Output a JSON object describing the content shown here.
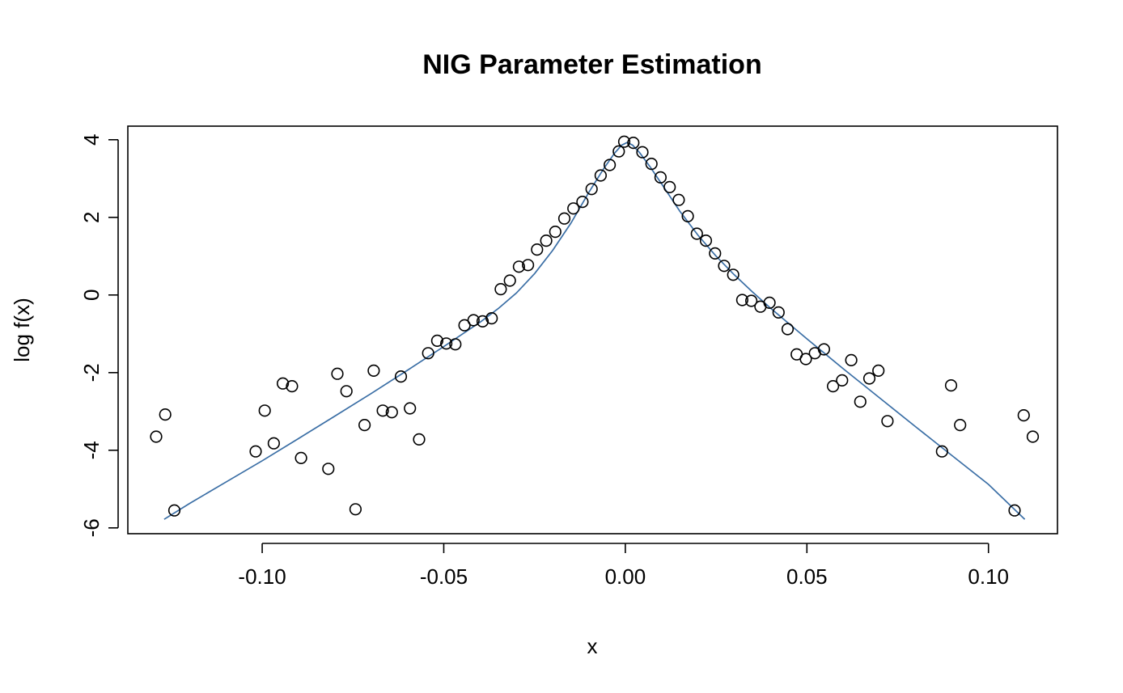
{
  "chart_data": {
    "type": "scatter",
    "title": "NIG Parameter Estimation",
    "xlabel": "x",
    "ylabel": "log f(x)",
    "xlim": [
      -0.137,
      0.119
    ],
    "ylim": [
      -6.15,
      4.35
    ],
    "x_ticks": [
      -0.1,
      -0.05,
      0.0,
      0.05,
      0.1
    ],
    "x_tick_labels": [
      "-0.10",
      "-0.05",
      "0.00",
      "0.05",
      "0.10"
    ],
    "y_ticks": [
      -6,
      -4,
      -2,
      0,
      2,
      4
    ],
    "y_tick_labels": [
      "-6",
      "-4",
      "-2",
      "0",
      "2",
      "4"
    ],
    "grid": false,
    "legend": "none",
    "series": [
      {
        "kind": "points",
        "color": "#000000",
        "points": [
          [
            -0.1292,
            -3.65
          ],
          [
            -0.1267,
            -3.08
          ],
          [
            -0.1242,
            -5.55
          ],
          [
            -0.1018,
            -4.03
          ],
          [
            -0.0993,
            -2.98
          ],
          [
            -0.0968,
            -3.82
          ],
          [
            -0.0943,
            -2.28
          ],
          [
            -0.0918,
            -2.35
          ],
          [
            -0.0893,
            -4.2
          ],
          [
            -0.0818,
            -4.48
          ],
          [
            -0.0793,
            -2.03
          ],
          [
            -0.0768,
            -2.48
          ],
          [
            -0.0743,
            -5.52
          ],
          [
            -0.0718,
            -3.35
          ],
          [
            -0.0693,
            -1.95
          ],
          [
            -0.0668,
            -2.98
          ],
          [
            -0.0643,
            -3.02
          ],
          [
            -0.0618,
            -2.1
          ],
          [
            -0.0593,
            -2.92
          ],
          [
            -0.0568,
            -3.72
          ],
          [
            -0.0543,
            -1.5
          ],
          [
            -0.0518,
            -1.18
          ],
          [
            -0.0493,
            -1.25
          ],
          [
            -0.0468,
            -1.27
          ],
          [
            -0.0443,
            -0.78
          ],
          [
            -0.0418,
            -0.65
          ],
          [
            -0.0393,
            -0.68
          ],
          [
            -0.0368,
            -0.6
          ],
          [
            -0.0343,
            0.15
          ],
          [
            -0.0318,
            0.37
          ],
          [
            -0.0293,
            0.73
          ],
          [
            -0.0268,
            0.77
          ],
          [
            -0.0243,
            1.17
          ],
          [
            -0.0218,
            1.4
          ],
          [
            -0.0193,
            1.63
          ],
          [
            -0.0168,
            1.97
          ],
          [
            -0.0143,
            2.23
          ],
          [
            -0.0118,
            2.4
          ],
          [
            -0.0093,
            2.73
          ],
          [
            -0.0068,
            3.08
          ],
          [
            -0.0043,
            3.35
          ],
          [
            -0.0018,
            3.7
          ],
          [
            -0.0003,
            3.95
          ],
          [
            0.0022,
            3.92
          ],
          [
            0.0047,
            3.68
          ],
          [
            0.0072,
            3.38
          ],
          [
            0.0097,
            3.03
          ],
          [
            0.0122,
            2.78
          ],
          [
            0.0147,
            2.45
          ],
          [
            0.0172,
            2.03
          ],
          [
            0.0197,
            1.58
          ],
          [
            0.0222,
            1.4
          ],
          [
            0.0247,
            1.07
          ],
          [
            0.0272,
            0.75
          ],
          [
            0.0297,
            0.52
          ],
          [
            0.0322,
            -0.13
          ],
          [
            0.0347,
            -0.15
          ],
          [
            0.0372,
            -0.3
          ],
          [
            0.0397,
            -0.2
          ],
          [
            0.0422,
            -0.45
          ],
          [
            0.0447,
            -0.88
          ],
          [
            0.0472,
            -1.53
          ],
          [
            0.0497,
            -1.65
          ],
          [
            0.0522,
            -1.5
          ],
          [
            0.0547,
            -1.4
          ],
          [
            0.0572,
            -2.35
          ],
          [
            0.0597,
            -2.2
          ],
          [
            0.0622,
            -1.68
          ],
          [
            0.0647,
            -2.75
          ],
          [
            0.0672,
            -2.15
          ],
          [
            0.0697,
            -1.95
          ],
          [
            0.0722,
            -3.25
          ],
          [
            0.0872,
            -4.03
          ],
          [
            0.0897,
            -2.33
          ],
          [
            0.0922,
            -3.35
          ],
          [
            0.1072,
            -5.55
          ],
          [
            0.1097,
            -3.1
          ],
          [
            0.1122,
            -3.65
          ]
        ]
      },
      {
        "kind": "line",
        "color": "#3a6ea5",
        "points": [
          [
            -0.127,
            -5.78
          ],
          [
            -0.12,
            -5.37
          ],
          [
            -0.11,
            -4.82
          ],
          [
            -0.1,
            -4.27
          ],
          [
            -0.09,
            -3.7
          ],
          [
            -0.08,
            -3.12
          ],
          [
            -0.07,
            -2.54
          ],
          [
            -0.06,
            -1.94
          ],
          [
            -0.05,
            -1.33
          ],
          [
            -0.04,
            -0.7
          ],
          [
            -0.035,
            -0.35
          ],
          [
            -0.03,
            0.05
          ],
          [
            -0.025,
            0.55
          ],
          [
            -0.02,
            1.15
          ],
          [
            -0.015,
            1.85
          ],
          [
            -0.01,
            2.65
          ],
          [
            -0.006,
            3.25
          ],
          [
            -0.003,
            3.65
          ],
          [
            -0.001,
            3.86
          ],
          [
            0.0005,
            3.93
          ],
          [
            0.002,
            3.86
          ],
          [
            0.004,
            3.66
          ],
          [
            0.007,
            3.28
          ],
          [
            0.01,
            2.86
          ],
          [
            0.015,
            2.16
          ],
          [
            0.02,
            1.54
          ],
          [
            0.025,
            1.0
          ],
          [
            0.03,
            0.52
          ],
          [
            0.035,
            0.08
          ],
          [
            0.04,
            -0.34
          ],
          [
            0.05,
            -1.13
          ],
          [
            0.06,
            -1.9
          ],
          [
            0.07,
            -2.65
          ],
          [
            0.08,
            -3.4
          ],
          [
            0.09,
            -4.14
          ],
          [
            0.1,
            -4.88
          ],
          [
            0.11,
            -5.78
          ]
        ]
      }
    ]
  }
}
